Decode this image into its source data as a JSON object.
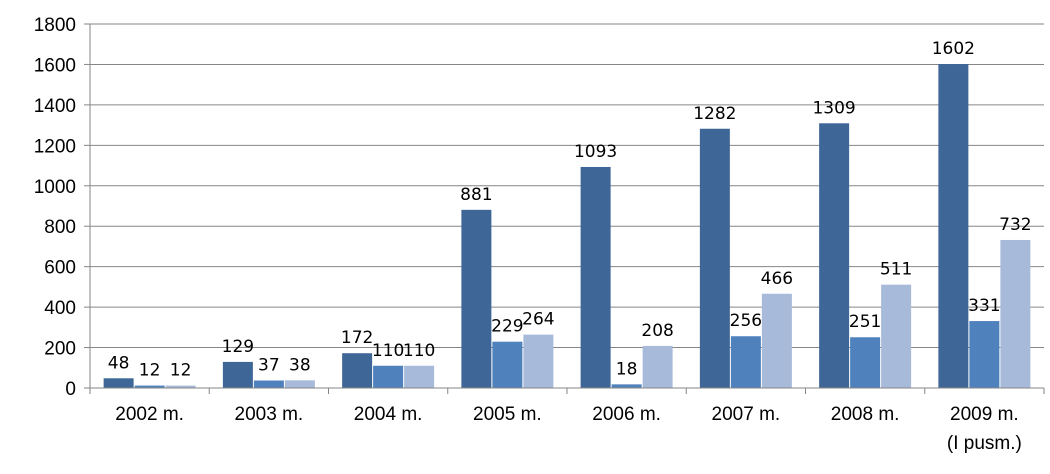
{
  "chart_data": {
    "type": "bar",
    "title": "",
    "xlabel": "",
    "ylabel": "",
    "ylim": [
      0,
      1800
    ],
    "yticks": [
      0,
      200,
      400,
      600,
      800,
      1000,
      1200,
      1400,
      1600,
      1800
    ],
    "grid": true,
    "legend": "none",
    "categories": [
      [
        "2002 m."
      ],
      [
        "2003 m."
      ],
      [
        "2004 m."
      ],
      [
        "2005 m."
      ],
      [
        "2006 m."
      ],
      [
        "2007 m."
      ],
      [
        "2008 m."
      ],
      [
        "2009 m.",
        "(I pusm.)"
      ]
    ],
    "series": [
      {
        "color": "#3E6797",
        "values": [
          48,
          129,
          172,
          881,
          1093,
          1282,
          1309,
          1602
        ]
      },
      {
        "color": "#4F81BD",
        "values": [
          12,
          37,
          110,
          229,
          18,
          256,
          251,
          331
        ]
      },
      {
        "color": "#A8BAD9",
        "values": [
          12,
          38,
          110,
          264,
          208,
          466,
          511,
          732
        ]
      }
    ]
  }
}
